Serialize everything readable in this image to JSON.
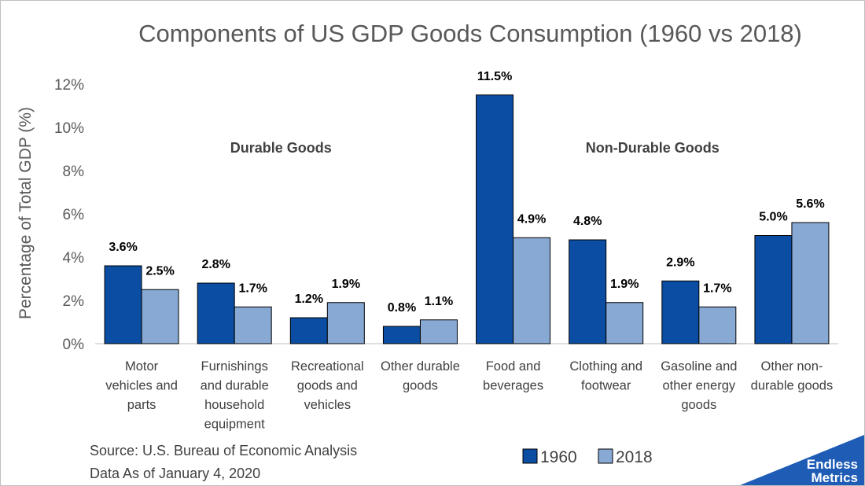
{
  "chart_data": {
    "type": "bar",
    "title": "Components of US GDP Goods Consumption (1960 vs 2018)",
    "ylabel": "Percentage of Total GDP (%)",
    "xlabel": "",
    "ylim": [
      0,
      12
    ],
    "yticks": [
      0,
      2,
      4,
      6,
      8,
      10,
      12
    ],
    "ytick_suffix": "%",
    "grid": false,
    "legend_position": "bottom-right",
    "categories": [
      [
        "Motor",
        "vehicles and",
        "parts"
      ],
      [
        "Furnishings",
        "and durable",
        "household",
        "equipment"
      ],
      [
        "Recreational",
        "goods and",
        "vehicles"
      ],
      [
        "Other durable",
        "goods"
      ],
      [
        "Food and",
        "beverages"
      ],
      [
        "Clothing and",
        "footwear"
      ],
      [
        "Gasoline and",
        "other energy",
        "goods"
      ],
      [
        "Other non-",
        "durable goods"
      ]
    ],
    "series": [
      {
        "name": "1960",
        "color": "#0a4da2",
        "values": [
          3.6,
          2.8,
          1.2,
          0.8,
          11.5,
          4.8,
          2.9,
          5.0
        ]
      },
      {
        "name": "2018",
        "color": "#87a9d3",
        "values": [
          2.5,
          1.7,
          1.9,
          1.1,
          4.9,
          1.9,
          1.7,
          5.6
        ]
      }
    ],
    "annotations": [
      {
        "text": "Durable Goods",
        "category_span": [
          0,
          3
        ],
        "y": 9.1
      },
      {
        "text": "Non-Durable Goods",
        "category_span": [
          4,
          7
        ],
        "y": 9.1
      }
    ]
  },
  "source_lines": [
    "Source: U.S. Bureau of Economic Analysis",
    "Data As of January 4, 2020"
  ],
  "brand": {
    "line1": "Endless",
    "line2": "Metrics",
    "color": "#1f5cb6"
  }
}
